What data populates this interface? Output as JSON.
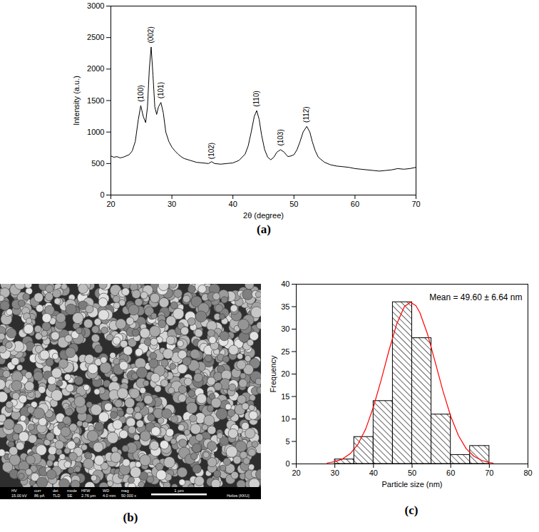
{
  "chart_data": [
    {
      "type": "line",
      "caption": "(a)",
      "xlabel": "2θ (degree)",
      "ylabel": "Intensity (a.u.)",
      "xlim": [
        20,
        70
      ],
      "xticks": [
        20,
        30,
        40,
        50,
        60,
        70
      ],
      "ylim": [
        0,
        3000
      ],
      "yticks": [
        0,
        500,
        1000,
        1500,
        2000,
        2500,
        3000
      ],
      "grid": false,
      "color": "#000000",
      "x": [
        20,
        20.5,
        21,
        21.5,
        22,
        22.5,
        23,
        23.5,
        24,
        24.5,
        24.9,
        25.3,
        25.7,
        26.0,
        26.3,
        26.6,
        26.9,
        27.2,
        27.5,
        27.8,
        28.2,
        28.6,
        29.0,
        29.5,
        30,
        30.5,
        31,
        31.5,
        32,
        33,
        34,
        35,
        36,
        36.5,
        37,
        38,
        39,
        40,
        41,
        42,
        42.5,
        43,
        43.5,
        43.9,
        44.3,
        44.7,
        45.2,
        45.7,
        46.2,
        46.7,
        47.2,
        47.8,
        48.4,
        49,
        49.5,
        50,
        50.5,
        51,
        51.5,
        52.1,
        52.6,
        53,
        53.5,
        54,
        55,
        56,
        57,
        58,
        59,
        60,
        61,
        62,
        63,
        64,
        65,
        66,
        67,
        68,
        69,
        70
      ],
      "values": [
        620,
        600,
        610,
        590,
        600,
        620,
        640,
        700,
        850,
        1200,
        1420,
        1250,
        1150,
        1400,
        2000,
        2350,
        1900,
        1400,
        1280,
        1400,
        1470,
        1300,
        1000,
        850,
        760,
        700,
        650,
        610,
        580,
        550,
        520,
        510,
        500,
        530,
        500,
        490,
        500,
        510,
        550,
        650,
        780,
        1000,
        1250,
        1340,
        1200,
        950,
        720,
        600,
        560,
        600,
        680,
        720,
        680,
        610,
        620,
        640,
        720,
        850,
        1000,
        1090,
        1000,
        850,
        700,
        600,
        520,
        480,
        460,
        450,
        440,
        420,
        410,
        400,
        390,
        380,
        390,
        400,
        420,
        410,
        420,
        440
      ],
      "annotations": [
        {
          "text": "(100)",
          "x": 24.9,
          "y": 1480
        },
        {
          "text": "(002)",
          "x": 26.6,
          "y": 2410
        },
        {
          "text": "(101)",
          "x": 28.2,
          "y": 1530
        },
        {
          "text": "(102)",
          "x": 36.5,
          "y": 570
        },
        {
          "text": "(110)",
          "x": 43.9,
          "y": 1400
        },
        {
          "text": "(103)",
          "x": 47.8,
          "y": 780
        },
        {
          "text": "(112)",
          "x": 52.1,
          "y": 1150
        }
      ]
    },
    {
      "type": "histogram",
      "caption": "(c)",
      "xlabel": "Particle size (nm)",
      "ylabel": "Frequency",
      "xlim": [
        20,
        80
      ],
      "xticks": [
        20,
        30,
        40,
        50,
        60,
        70,
        80
      ],
      "ylim": [
        0,
        40
      ],
      "yticks": [
        0,
        5,
        10,
        15,
        20,
        25,
        30,
        35,
        40
      ],
      "grid": false,
      "color": "#000000",
      "bins": [
        30,
        35,
        40,
        45,
        50,
        55,
        60,
        65,
        70
      ],
      "values": [
        1,
        6,
        14,
        36,
        28,
        11,
        2,
        4
      ],
      "annotation": "Mean = 49.60 ± 6.64 nm",
      "fit": {
        "color": "#ff0000",
        "x": [
          28,
          30,
          32,
          34,
          36,
          38,
          40,
          42,
          44,
          46,
          48,
          49.6,
          51,
          52,
          54,
          56,
          58,
          60,
          62,
          64,
          66,
          68,
          70,
          71
        ],
        "values": [
          0.2,
          0.5,
          1.1,
          2.3,
          4.4,
          7.8,
          12.7,
          18.7,
          25.2,
          31.1,
          35.0,
          36.0,
          35.2,
          33.7,
          28.9,
          22.6,
          16.2,
          10.6,
          6.3,
          3.4,
          1.7,
          0.8,
          0.3,
          0.2
        ]
      }
    }
  ],
  "sem_image": {
    "caption": "(b)",
    "info_labels": [
      "HV",
      "curr",
      "det",
      "mode",
      "HFW",
      "WD",
      "mag"
    ],
    "info_values": [
      "15.00 kV",
      "86 pA",
      "TLD",
      "SE",
      "2.76 µm",
      "4.0 mm",
      "50 000 x"
    ],
    "scale_bar": "1 µm",
    "instrument": "Helios (KKU)"
  }
}
